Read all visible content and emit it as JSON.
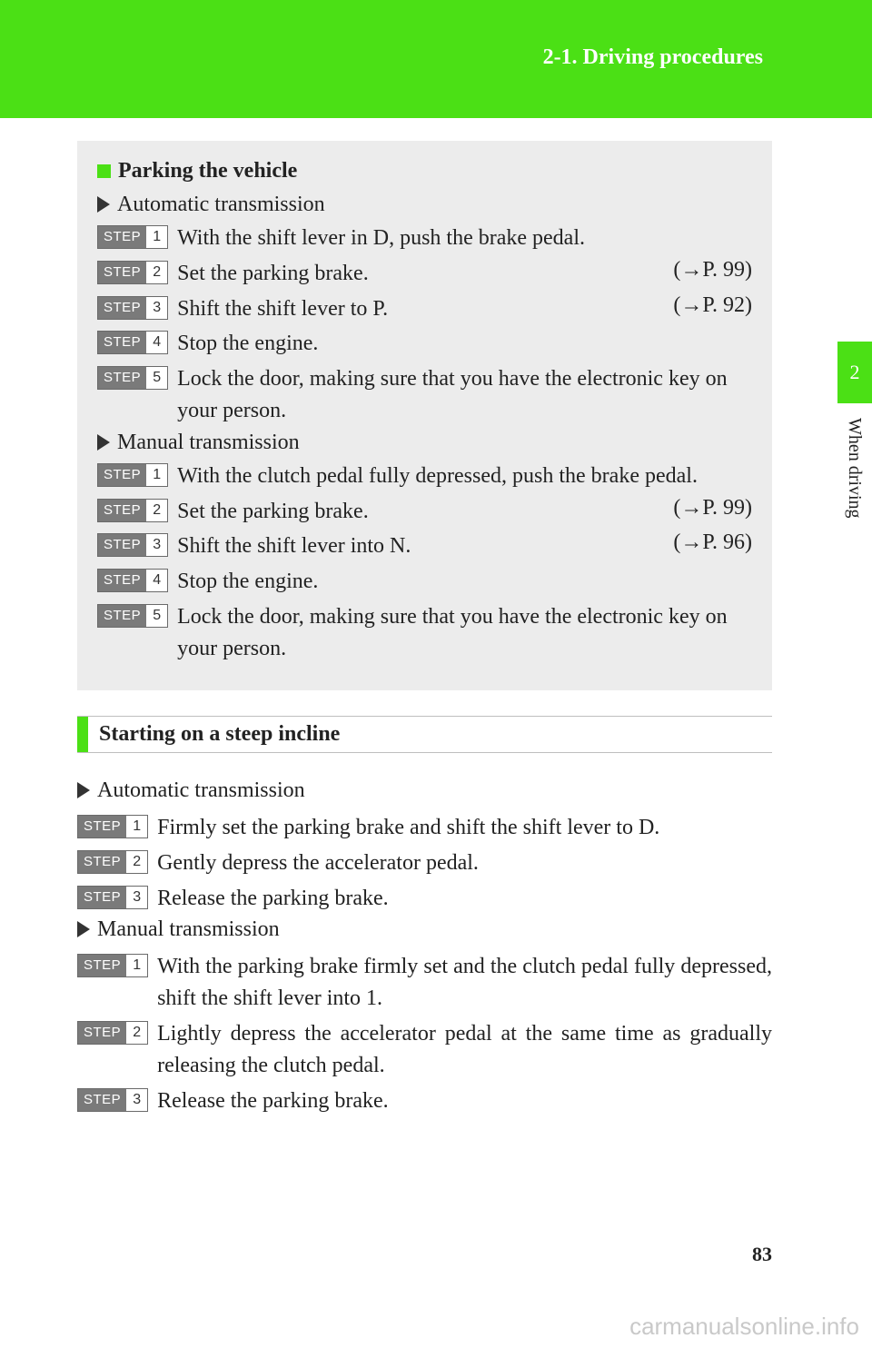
{
  "colors": {
    "accent": "#4be015",
    "gray_box": "#ececec",
    "badge_bg": "#7a7a7a",
    "text": "#222222",
    "watermark": "#c9c9c9"
  },
  "header": {
    "section_title": "2-1. Driving procedures"
  },
  "side": {
    "tab_number": "2",
    "label": "When driving"
  },
  "box1": {
    "heading": "Parking the vehicle",
    "auto_label": "Automatic transmission",
    "auto_steps": [
      {
        "n": "1",
        "text": "With the shift lever in D, push the brake pedal.",
        "ref": ""
      },
      {
        "n": "2",
        "text": "Set the parking brake.",
        "ref": "(→P. 99)"
      },
      {
        "n": "3",
        "text": "Shift the shift lever to P.",
        "ref": "(→P. 92)"
      },
      {
        "n": "4",
        "text": "Stop the engine.",
        "ref": ""
      },
      {
        "n": "5",
        "text": "Lock the door, making sure that you have the electronic key on your person.",
        "ref": ""
      }
    ],
    "manual_label": "Manual transmission",
    "manual_steps": [
      {
        "n": "1",
        "text": "With the clutch pedal fully depressed, push the brake pedal.",
        "ref": ""
      },
      {
        "n": "2",
        "text": "Set the parking brake.",
        "ref": "(→P. 99)"
      },
      {
        "n": "3",
        "text": "Shift the shift lever into N.",
        "ref": "(→P. 96)"
      },
      {
        "n": "4",
        "text": "Stop the engine.",
        "ref": ""
      },
      {
        "n": "5",
        "text": "Lock the door, making sure that you have the electronic key on your person.",
        "ref": ""
      }
    ]
  },
  "box2": {
    "heading": "Starting on a steep incline",
    "auto_label": "Automatic transmission",
    "auto_steps": [
      {
        "n": "1",
        "text": "Firmly set the parking brake and shift the shift lever to D."
      },
      {
        "n": "2",
        "text": "Gently depress the accelerator pedal."
      },
      {
        "n": "3",
        "text": "Release the parking brake."
      }
    ],
    "manual_label": "Manual transmission",
    "manual_steps": [
      {
        "n": "1",
        "text": "With the parking brake firmly set and the clutch pedal fully depressed, shift the shift lever into 1."
      },
      {
        "n": "2",
        "text": "Lightly depress the accelerator pedal at the same time as gradually releasing the clutch pedal."
      },
      {
        "n": "3",
        "text": "Release the parking brake."
      }
    ]
  },
  "step_label": "STEP",
  "page_number": "83",
  "watermark": "carmanualsonline.info"
}
